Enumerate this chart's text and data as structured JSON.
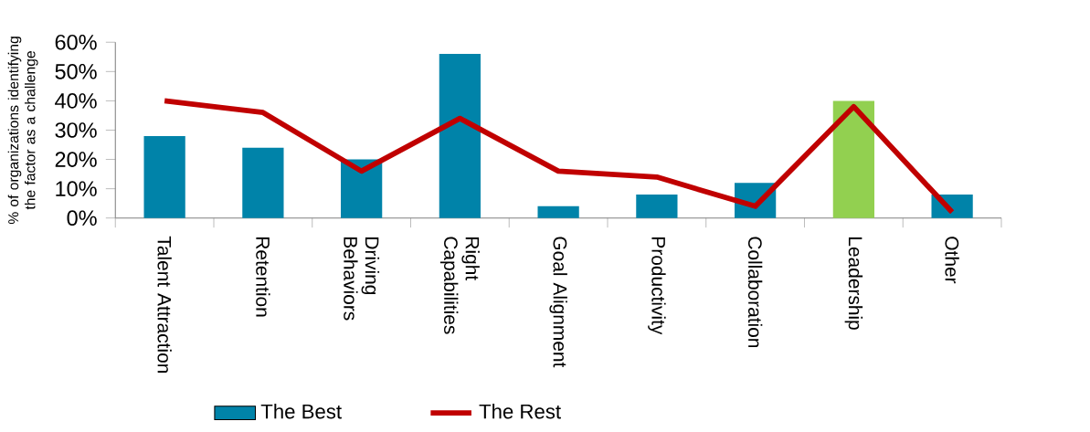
{
  "chart_data": {
    "type": "bar",
    "ylabel": "% of organizations identifying the factor as a challenge",
    "categories": [
      "Talent Attraction",
      "Retention",
      "Driving Behaviors",
      "Right Capabilities",
      "Goal Alignment",
      "Productivity",
      "Collaboration",
      "Leadership",
      "Other"
    ],
    "series": [
      {
        "name": "The Best",
        "color": "#0083a9",
        "colors": [
          "#0083a9",
          "#0083a9",
          "#0083a9",
          "#0083a9",
          "#0083a9",
          "#0083a9",
          "#0083a9",
          "#92d050",
          "#0083a9"
        ],
        "values": [
          28,
          24,
          20,
          56,
          4,
          8,
          12,
          40,
          8
        ]
      },
      {
        "name": "The Rest",
        "type": "line",
        "color": "#c00000",
        "values": [
          40,
          36,
          16,
          34,
          16,
          14,
          4,
          38,
          2
        ]
      }
    ],
    "ylim": [
      0,
      60
    ],
    "yticks": [
      {
        "value": 0,
        "label": "0%"
      },
      {
        "value": 10,
        "label": "10%"
      },
      {
        "value": 20,
        "label": "20%"
      },
      {
        "value": 30,
        "label": "30%"
      },
      {
        "value": 40,
        "label": "40%"
      },
      {
        "value": 50,
        "label": "50%"
      },
      {
        "value": 60,
        "label": "60%"
      }
    ],
    "legend": "bottom",
    "grid": false
  }
}
